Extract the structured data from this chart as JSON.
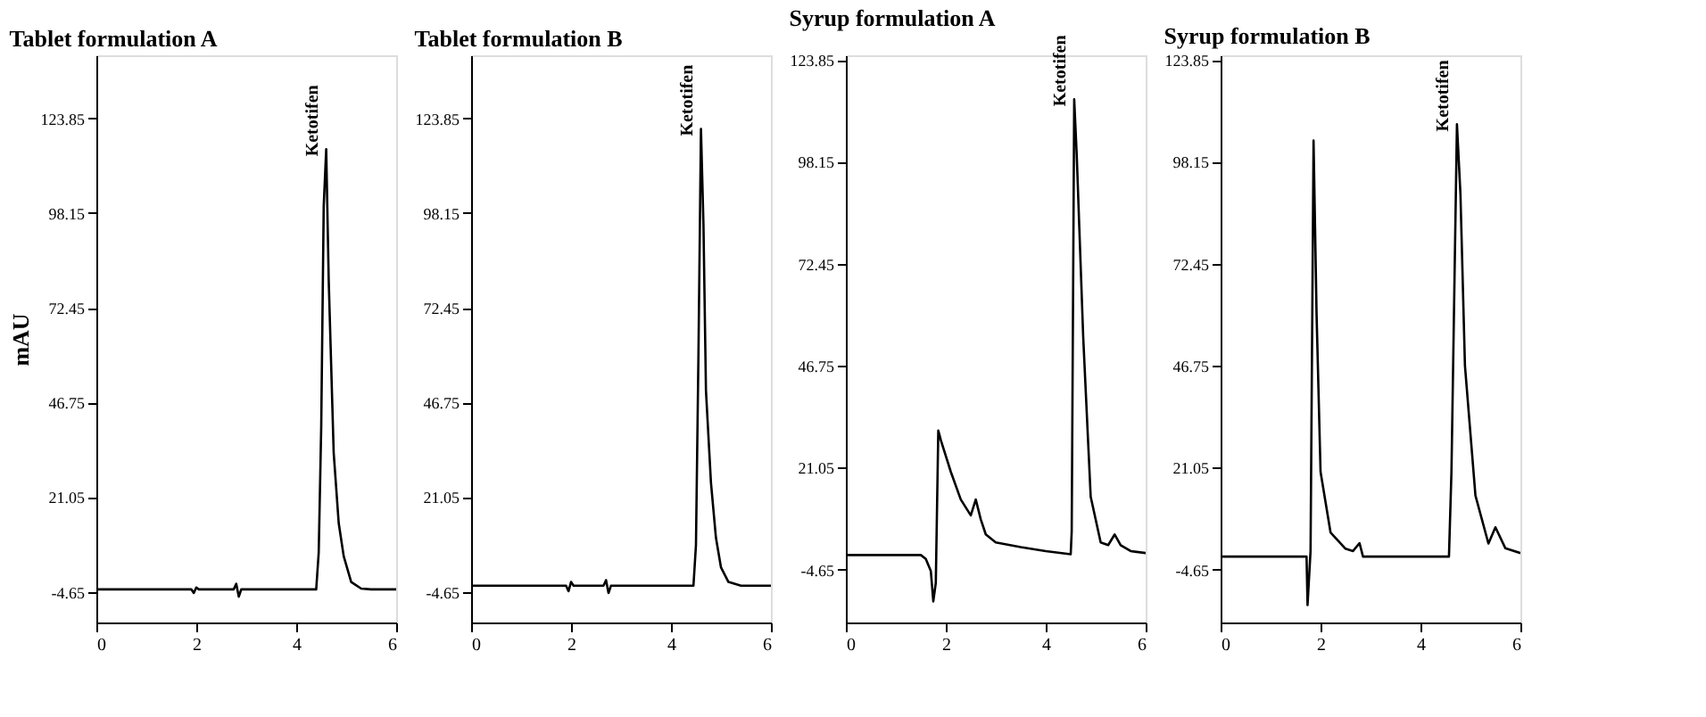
{
  "chart_data": [
    {
      "type": "line",
      "title": "Tablet formulation A",
      "ylabel": "mAU",
      "xlim": [
        0,
        6
      ],
      "xticks": [
        0,
        2,
        4,
        6
      ],
      "ylim": [
        -13,
        141
      ],
      "yticks": [
        -4.65,
        21.05,
        46.75,
        72.45,
        98.15,
        123.85
      ],
      "grid": false,
      "marker": "none",
      "line_style": "solid",
      "annotations": [
        {
          "text": "Ketotifen",
          "x": 4.6,
          "y": 115.5
        }
      ],
      "x": [
        0,
        1.9,
        1.95,
        2.0,
        2.05,
        2.75,
        2.8,
        2.85,
        2.9,
        4.4,
        4.45,
        4.5,
        4.55,
        4.6,
        4.65,
        4.75,
        4.85,
        4.95,
        5.1,
        5.3,
        5.5,
        6
      ],
      "series": [
        {
          "color": "#000000",
          "values": [
            -4,
            -4,
            -5,
            -3.5,
            -4,
            -4,
            -2.5,
            -6,
            -4,
            -4,
            6,
            40,
            100,
            115.5,
            80,
            33,
            14,
            5,
            -2,
            -3.8,
            -4,
            -4
          ]
        }
      ]
    },
    {
      "type": "line",
      "title": "Tablet formulation B",
      "xlim": [
        0,
        6
      ],
      "xticks": [
        0,
        2,
        4,
        6
      ],
      "ylim": [
        -13,
        141
      ],
      "yticks": [
        -4.65,
        21.05,
        46.75,
        72.45,
        98.15,
        123.85
      ],
      "grid": false,
      "marker": "none",
      "line_style": "solid",
      "annotations": [
        {
          "text": "Ketotifen",
          "x": 4.6,
          "y": 121
        }
      ],
      "x": [
        0,
        1.9,
        1.95,
        2.0,
        2.05,
        2.65,
        2.7,
        2.75,
        2.8,
        4.45,
        4.5,
        4.55,
        4.6,
        4.65,
        4.7,
        4.8,
        4.9,
        5.0,
        5.15,
        5.4,
        6
      ],
      "series": [
        {
          "color": "#000000",
          "values": [
            -3,
            -3,
            -4.5,
            -2,
            -3,
            -3,
            -1.5,
            -5,
            -3,
            -3,
            8,
            60,
            121,
            95,
            50,
            25,
            10,
            2,
            -2,
            -3,
            -3
          ]
        }
      ]
    },
    {
      "type": "line",
      "title": "Syrup formulation A",
      "xlim": [
        0,
        6
      ],
      "xticks": [
        0,
        2,
        4,
        6
      ],
      "ylim": [
        -18,
        125
      ],
      "yticks": [
        -4.65,
        21.05,
        46.75,
        72.45,
        98.15,
        123.85
      ],
      "grid": false,
      "marker": "none",
      "line_style": "solid",
      "annotations": [
        {
          "text": "Ketotifen",
          "x": 4.57,
          "y": 113.9
        }
      ],
      "x": [
        0,
        1.5,
        1.6,
        1.7,
        1.75,
        1.8,
        1.85,
        1.9,
        2.1,
        2.3,
        2.5,
        2.6,
        2.7,
        2.8,
        3.0,
        3.5,
        4.0,
        4.5,
        4.52,
        4.57,
        4.62,
        4.75,
        4.9,
        5.1,
        5.25,
        5.38,
        5.5,
        5.7,
        6
      ],
      "series": [
        {
          "color": "#000000",
          "values": [
            -1,
            -1,
            -2,
            -5,
            -12.7,
            -8,
            30.4,
            28,
            20,
            13,
            9,
            13,
            8,
            4.2,
            2.2,
            1,
            0,
            -0.8,
            5,
            113.9,
            100,
            54,
            13.7,
            2.2,
            1.5,
            4.2,
            1.5,
            0,
            -0.5
          ]
        }
      ]
    },
    {
      "type": "line",
      "title": "Syrup formulation B",
      "xlim": [
        0,
        6
      ],
      "xticks": [
        0,
        2,
        4,
        6
      ],
      "ylim": [
        -18,
        125
      ],
      "yticks": [
        -4.65,
        21.05,
        46.75,
        72.45,
        98.15,
        123.85
      ],
      "grid": false,
      "marker": "none",
      "line_style": "solid",
      "annotations": [
        {
          "text": "Ketotifen",
          "x": 4.73,
          "y": 107.6
        }
      ],
      "x": [
        0,
        1.7,
        1.72,
        1.74,
        1.8,
        1.86,
        1.92,
        2.0,
        2.2,
        2.5,
        2.65,
        2.78,
        2.85,
        3.2,
        4.5,
        4.57,
        4.62,
        4.73,
        4.8,
        4.89,
        5.1,
        5.36,
        5.5,
        5.7,
        6
      ],
      "series": [
        {
          "color": "#000000",
          "values": [
            -1.4,
            -1.4,
            -1.4,
            -13.6,
            0,
            103.5,
            60,
            20,
            4.7,
            0.6,
            0,
            2,
            -1.4,
            -1.4,
            -1.4,
            -1.4,
            20,
            107.6,
            90,
            46.8,
            14,
            1.9,
            6,
            0.7,
            -0.5
          ]
        }
      ]
    }
  ]
}
